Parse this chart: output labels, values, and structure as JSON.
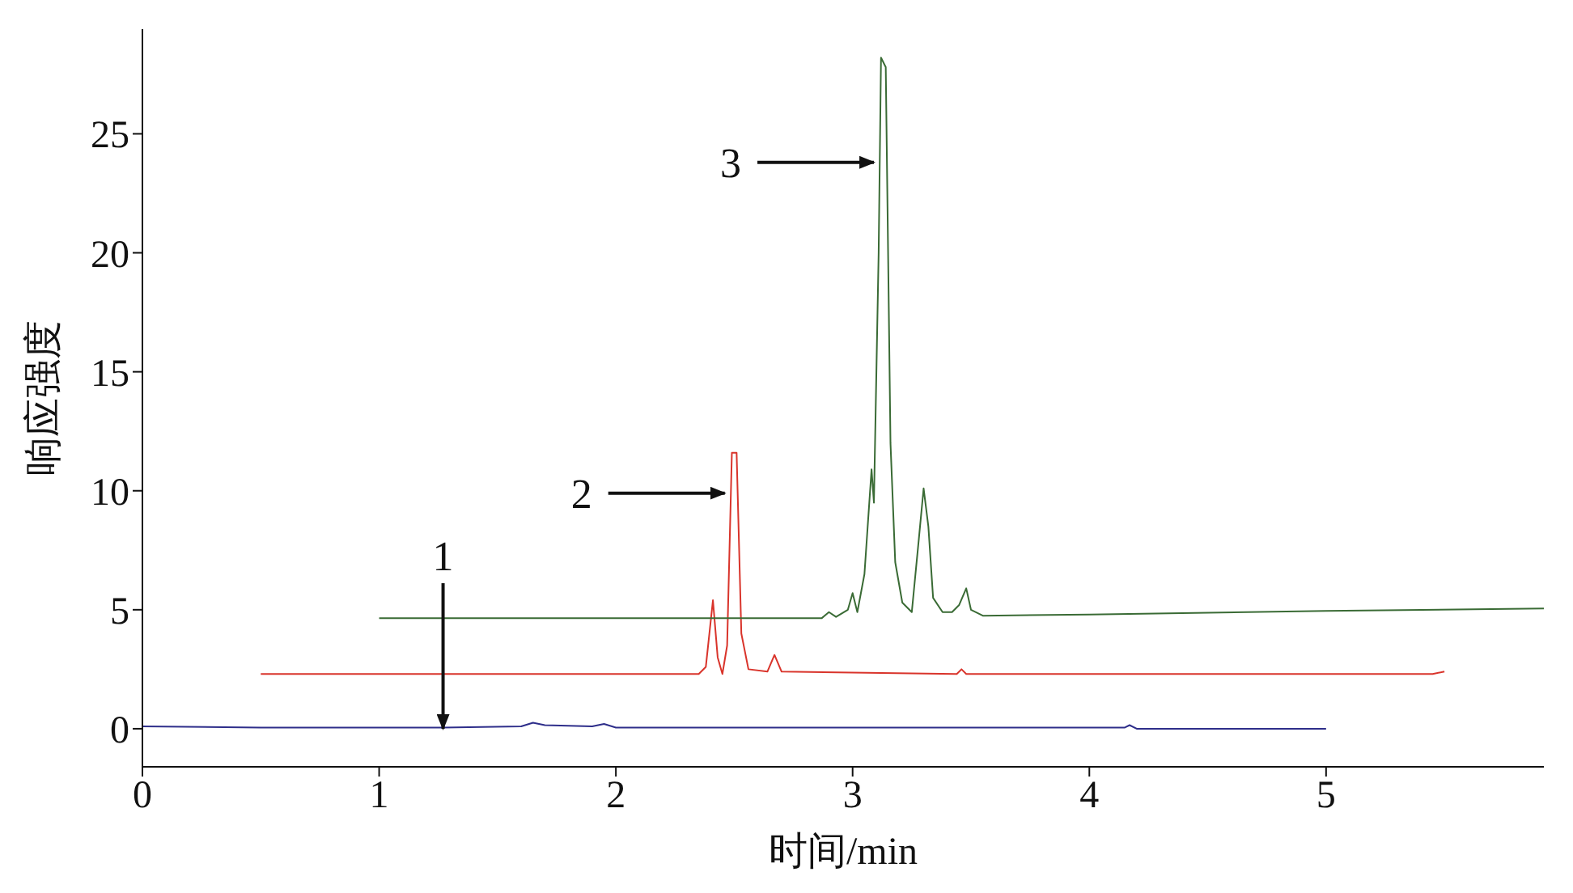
{
  "chart_data": {
    "type": "line",
    "xlabel": "时间/min",
    "ylabel": "响应强度",
    "xlim": [
      0,
      5.92
    ],
    "ylim": [
      -1.6,
      29.4
    ],
    "xticks": [
      0,
      1,
      2,
      3,
      4,
      5
    ],
    "yticks": [
      0,
      5,
      10,
      15,
      20,
      25
    ],
    "grid": false,
    "legend": false,
    "marker": "none",
    "line_style": "solid",
    "series": [
      {
        "color": "#2e2e8a",
        "x": [
          0,
          0.5,
          1.27,
          1.6,
          1.65,
          1.7,
          1.9,
          1.95,
          2.0,
          3.0,
          4.15,
          4.17,
          4.2,
          5.0
        ],
        "values": [
          0.1,
          0.05,
          0.05,
          0.1,
          0.25,
          0.15,
          0.1,
          0.2,
          0.05,
          0.05,
          0.05,
          0.15,
          0.0,
          0.0
        ]
      },
      {
        "color": "#d9342b",
        "x": [
          0.5,
          2.35,
          2.38,
          2.41,
          2.43,
          2.45,
          2.47,
          2.49,
          2.51,
          2.53,
          2.56,
          2.64,
          2.67,
          2.7,
          3.44,
          3.46,
          3.48,
          5.45,
          5.5
        ],
        "values": [
          2.3,
          2.3,
          2.6,
          5.4,
          3.0,
          2.3,
          3.5,
          11.6,
          11.6,
          4.0,
          2.5,
          2.4,
          3.1,
          2.4,
          2.3,
          2.5,
          2.3,
          2.3,
          2.4
        ]
      },
      {
        "color": "#3a6b35",
        "x": [
          1.0,
          2.87,
          2.9,
          2.93,
          2.98,
          3.0,
          3.02,
          3.05,
          3.08,
          3.09,
          3.11,
          3.12,
          3.14,
          3.16,
          3.18,
          3.21,
          3.25,
          3.28,
          3.3,
          3.32,
          3.34,
          3.38,
          3.42,
          3.45,
          3.48,
          3.5,
          3.55,
          4.0,
          5.0,
          5.92
        ],
        "values": [
          4.65,
          4.65,
          4.9,
          4.7,
          5.0,
          5.7,
          4.9,
          6.5,
          10.9,
          9.5,
          20,
          28.2,
          27.8,
          12,
          7,
          5.3,
          4.9,
          8,
          10.1,
          8.5,
          5.5,
          4.9,
          4.9,
          5.2,
          5.9,
          5.0,
          4.75,
          4.8,
          4.95,
          5.05
        ]
      }
    ],
    "annotations": [
      {
        "text": "1",
        "x": 1.27,
        "y": 0
      },
      {
        "text": "2",
        "x": 2.46,
        "y": 9.9
      },
      {
        "text": "3",
        "x": 3.09,
        "y": 23.8
      }
    ]
  }
}
